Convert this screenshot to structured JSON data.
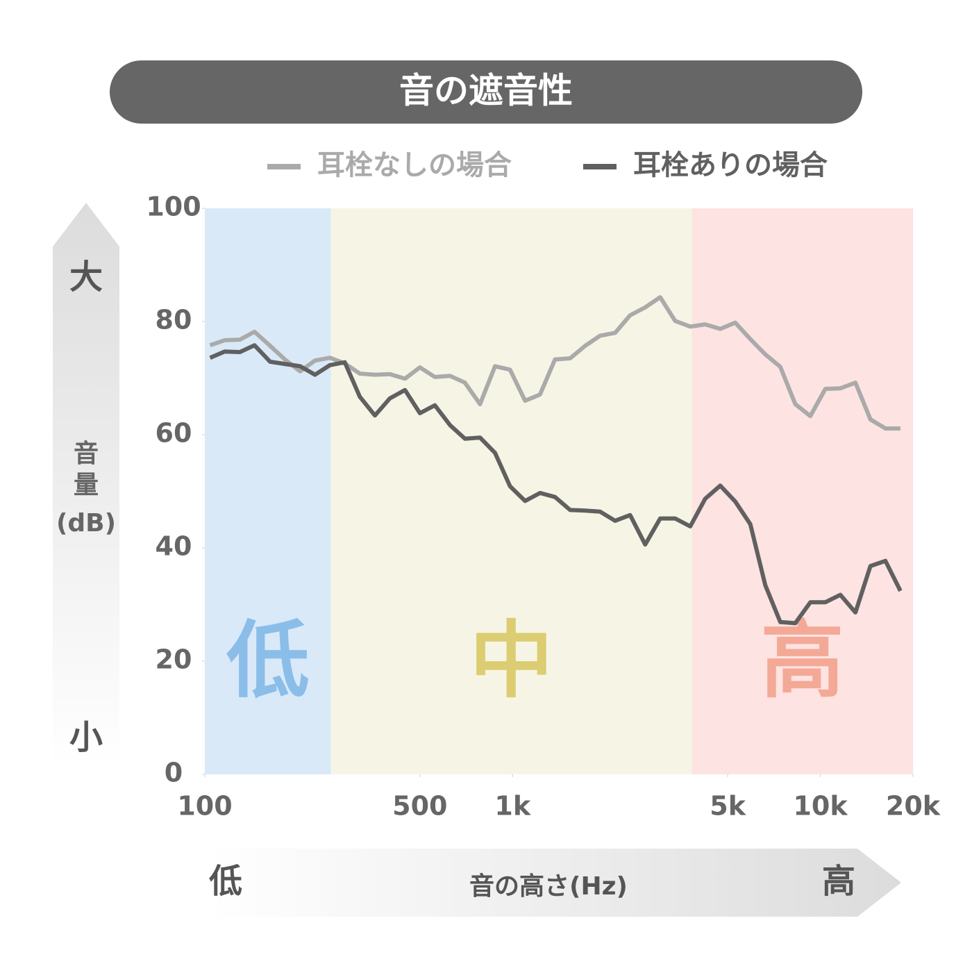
{
  "chart_data": {
    "type": "line",
    "title": "音の遮音性",
    "x_label": "音の高さ(Hz)",
    "x_arrow_labels": [
      "低",
      "高"
    ],
    "y_label_lines": [
      "音",
      "量",
      "(dB)"
    ],
    "y_arrow_labels": [
      "大",
      "小"
    ],
    "log_x": true,
    "xlim": [
      100,
      20000
    ],
    "xticks": [
      100,
      500,
      {
        "value": 1000,
        "label": "1k"
      },
      {
        "value": 5000,
        "label": "5k"
      },
      {
        "value": 10000,
        "label": "10k"
      },
      {
        "value": 20000,
        "label": "20k"
      }
    ],
    "ylim": [
      0,
      100
    ],
    "yticks": [
      0,
      20,
      40,
      60,
      80,
      100
    ],
    "bands": [
      {
        "label": "低",
        "from": 100,
        "to": 257,
        "color": "#d9e9f8",
        "label_color": "#8bbde9"
      },
      {
        "label": "中",
        "from": 257,
        "to": 3820,
        "color": "#f6f5e5",
        "label_color": "#dccd72"
      },
      {
        "label": "高",
        "from": 3820,
        "to": 20000,
        "color": "#fde3e1",
        "label_color": "#f3a996"
      }
    ],
    "x": [
      104,
      116,
      130,
      145,
      163,
      182,
      204,
      228,
      255,
      285,
      319,
      357,
      399,
      447,
      500,
      559,
      626,
      700,
      784,
      877,
      981,
      1098,
      1228,
      1374,
      1538,
      1721,
      1925,
      2154,
      2410,
      2697,
      3017,
      3376,
      3778,
      4227,
      4729,
      5292,
      5921,
      6625,
      7412,
      8294,
      9280,
      10383,
      11618,
      12999,
      14545,
      16274,
      18210
    ],
    "series": [
      {
        "name": "耳栓なしの場合",
        "color": "#aaaaaa",
        "values": [
          75.8,
          76.7,
          76.8,
          78.2,
          75.7,
          73.3,
          71.2,
          73.1,
          73.6,
          72.6,
          70.8,
          70.6,
          70.7,
          69.9,
          71.9,
          70.2,
          70.4,
          69.2,
          65.4,
          72.1,
          71.5,
          66.0,
          67.1,
          73.3,
          73.5,
          75.7,
          77.5,
          78.0,
          81.1,
          82.5,
          84.3,
          80.1,
          79.1,
          79.5,
          78.7,
          79.8,
          76.9,
          74.2,
          72.0,
          65.4,
          63.3,
          68.1,
          68.2,
          69.2,
          62.7,
          61.1,
          61.1
        ]
      },
      {
        "name": "耳栓ありの場合",
        "color": "#606060",
        "values": [
          73.6,
          74.7,
          74.6,
          75.8,
          72.9,
          72.5,
          72.1,
          70.6,
          72.3,
          72.8,
          66.7,
          63.4,
          66.4,
          67.9,
          63.8,
          65.2,
          61.7,
          59.3,
          59.5,
          56.8,
          50.9,
          48.3,
          49.7,
          49.0,
          46.7,
          46.6,
          46.4,
          44.8,
          45.8,
          40.6,
          45.2,
          45.2,
          43.8,
          48.7,
          51.0,
          48.2,
          44.2,
          33.4,
          26.9,
          26.7,
          30.4,
          30.4,
          31.7,
          28.6,
          36.8,
          37.7,
          32.4
        ]
      }
    ]
  }
}
